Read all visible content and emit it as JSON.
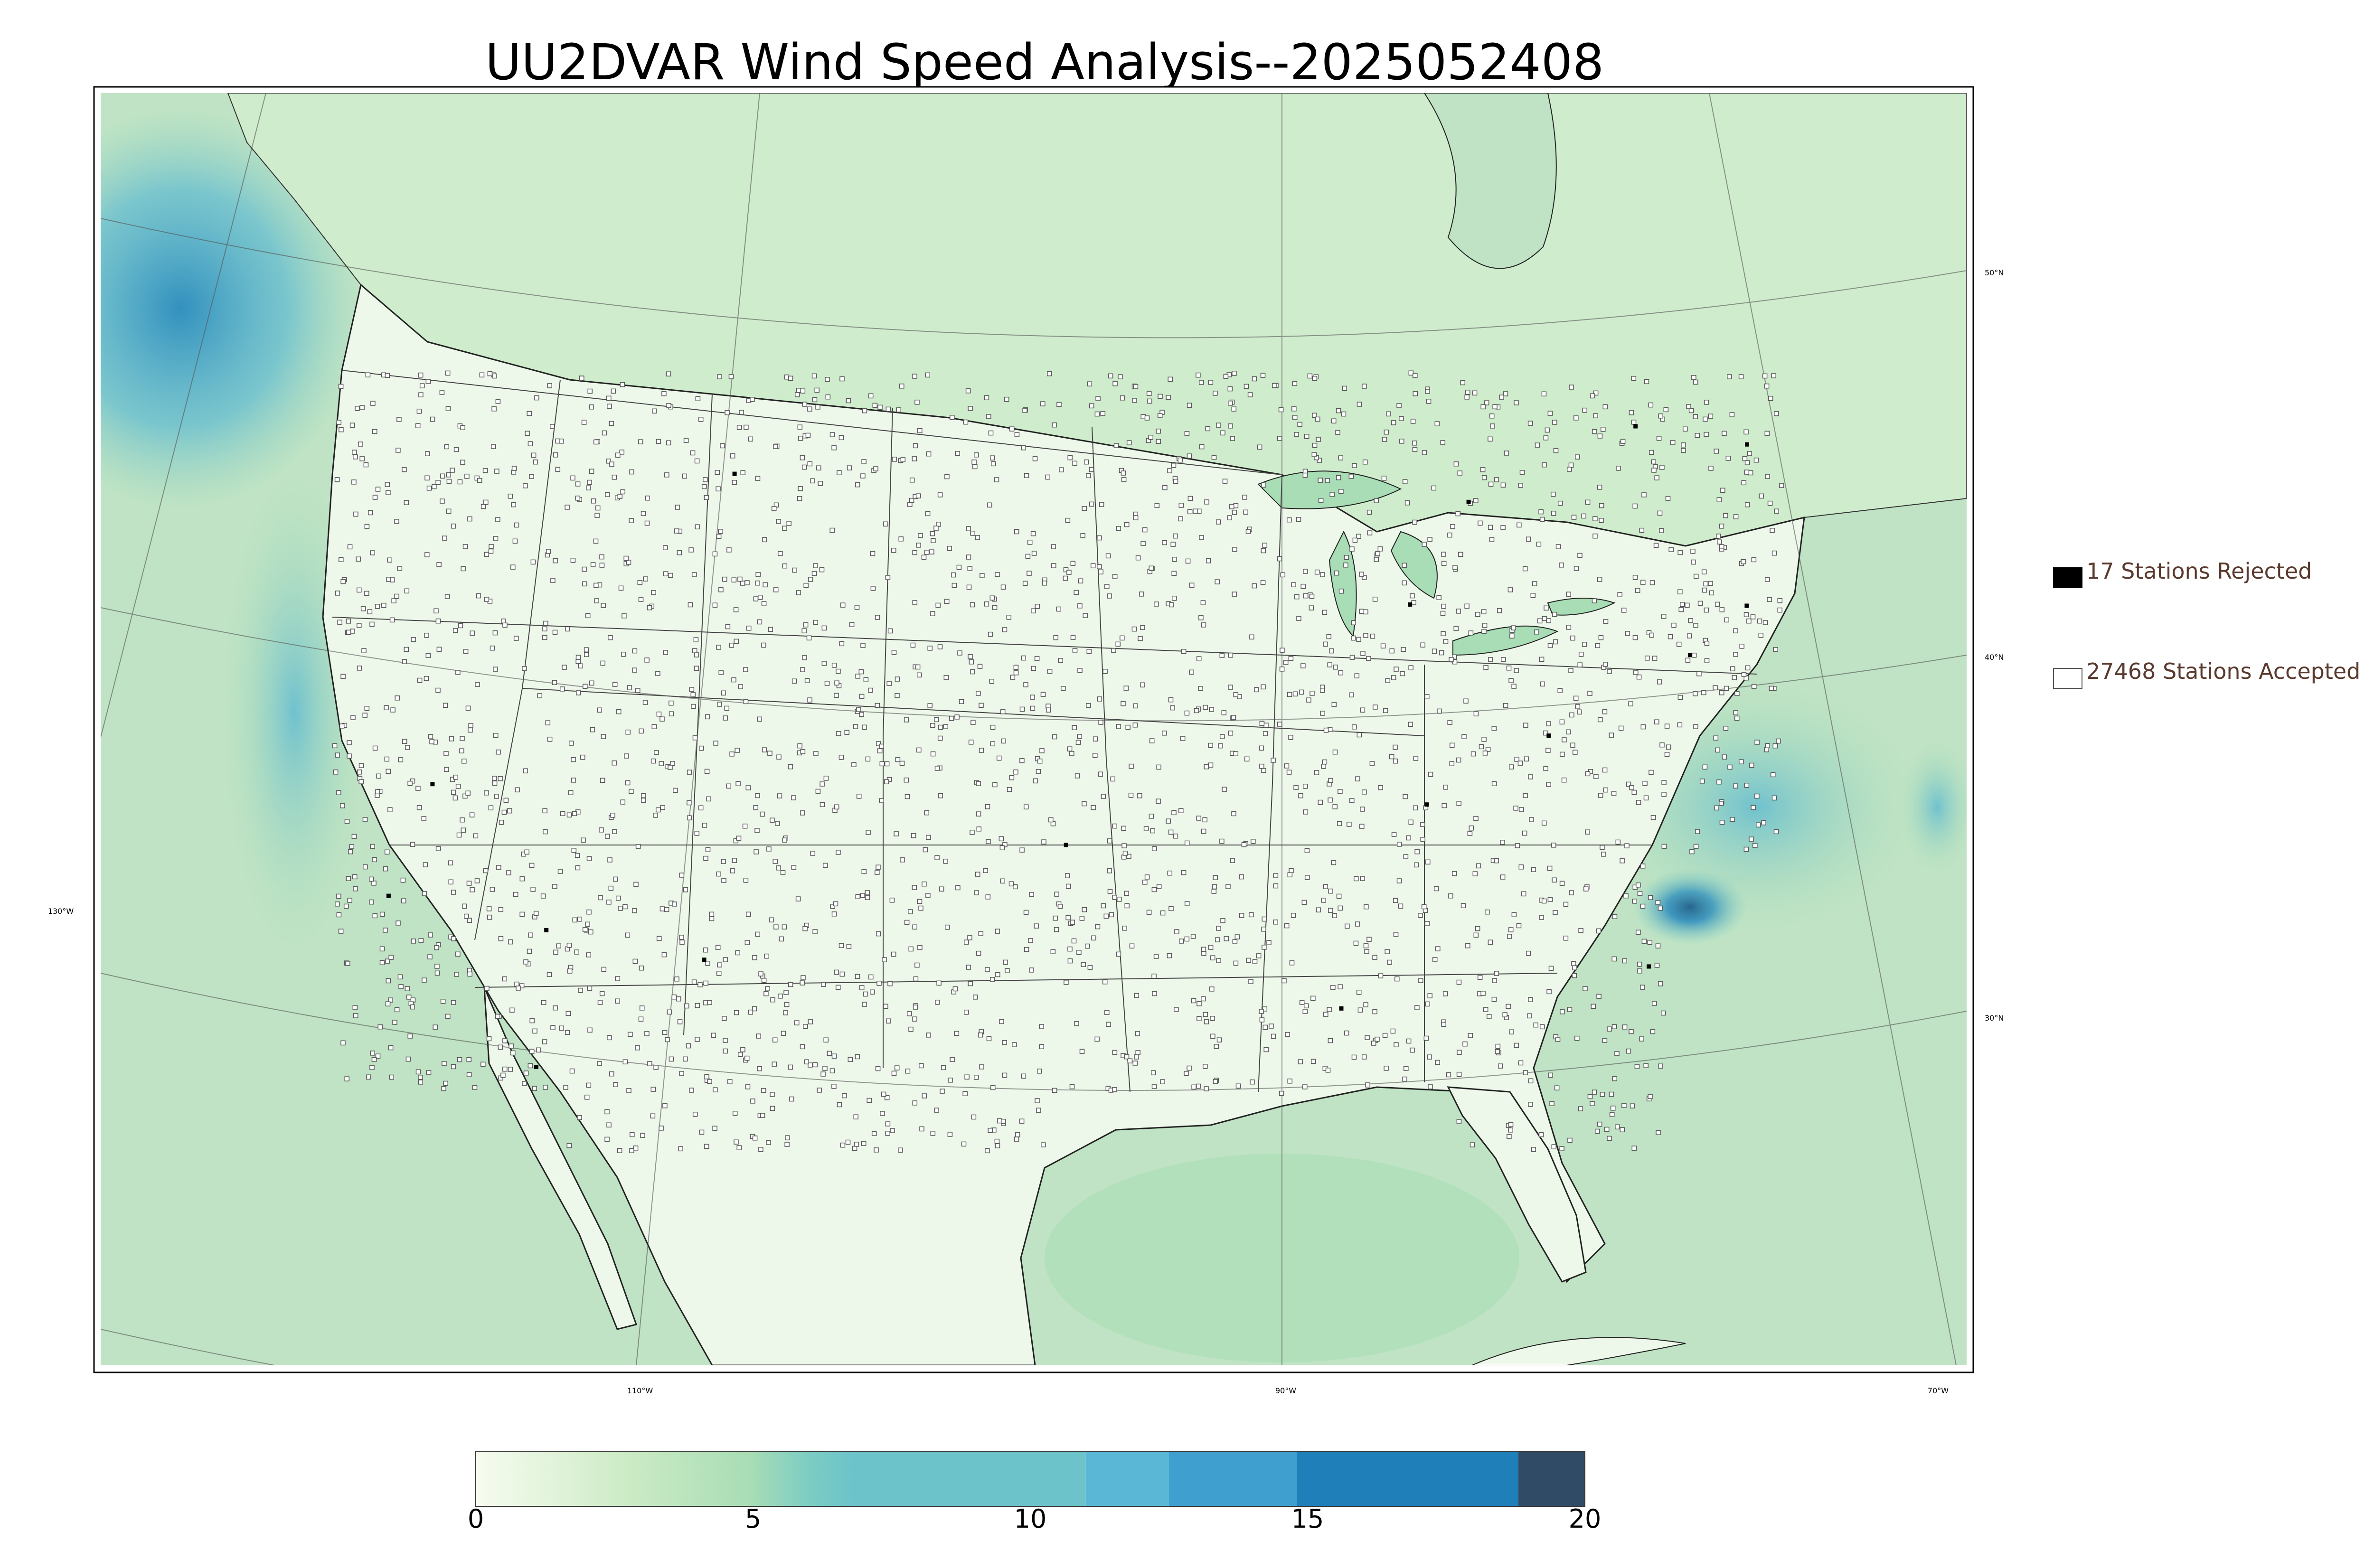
{
  "title": "UU2DVAR Wind Speed Analysis--2025052408",
  "legend": {
    "rejected": {
      "label": "17 Stations Rejected",
      "fill": "#000000"
    },
    "accepted": {
      "label": "27468 Stations Accepted",
      "fill": "#ffffff"
    }
  },
  "map": {
    "longitude_labels": [
      "110°W",
      "90°W",
      "70°W",
      "130°W"
    ],
    "latitude_labels": [
      "50°N",
      "40°N",
      "30°N"
    ],
    "land_color": "#f2faee",
    "ocean_color": "#bfe3c4",
    "strong_wind_color": "#3f8fc6"
  },
  "colorbar": {
    "ticks": [
      "0",
      "5",
      "10",
      "15",
      "20"
    ],
    "min": 0,
    "max": 20,
    "colors": [
      "#f7fcf0",
      "#e0f3db",
      "#ccebc5",
      "#a8ddb5",
      "#7bccc4",
      "#4eb3d3",
      "#2b8cbe",
      "#1f7fb8",
      "#2f4b66"
    ]
  }
}
